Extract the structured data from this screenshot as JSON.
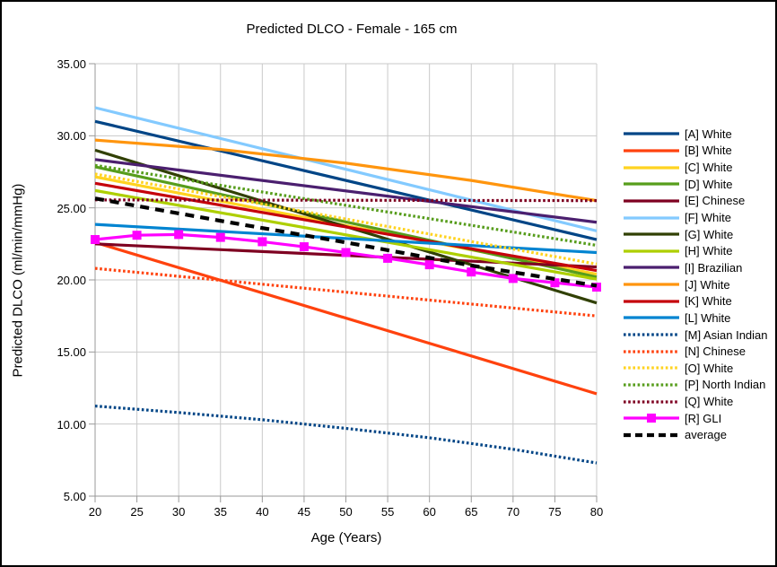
{
  "window": {
    "title": "Predicted DLCO - Female - 165 cm"
  },
  "chart_data": {
    "type": "line",
    "title": "Predicted DLCO - Female - 165 cm",
    "xlabel": "Age (Years)",
    "ylabel": "Predicted DLCO (ml/min/mmHg)",
    "xlim": [
      20,
      80
    ],
    "ylim": [
      5,
      35
    ],
    "x_ticks": [
      20,
      25,
      30,
      35,
      40,
      45,
      50,
      55,
      60,
      65,
      70,
      75,
      80
    ],
    "y_ticks": [
      5,
      10,
      15,
      20,
      25,
      30,
      35
    ],
    "y_tick_labels": [
      "5.00",
      "10.00",
      "15.00",
      "20.00",
      "25.00",
      "30.00",
      "35.00"
    ],
    "grid": true,
    "legend_position": "right",
    "colors": {
      "gridline": "#c9c9c9",
      "axis": "#999999",
      "gli_magenta": "#ff00ff",
      "average_black": "#000000"
    },
    "series": [
      {
        "id": "A",
        "label": "[A] White",
        "color": "#004586",
        "style": "solid",
        "x": [
          20,
          80
        ],
        "y": [
          31.0,
          22.8
        ]
      },
      {
        "id": "B",
        "label": "[B] White",
        "color": "#ff420e",
        "style": "solid",
        "x": [
          20,
          80
        ],
        "y": [
          22.6,
          12.1
        ]
      },
      {
        "id": "C",
        "label": "[C] White",
        "color": "#ffd320",
        "style": "solid",
        "x": [
          20,
          80
        ],
        "y": [
          27.15,
          20.4
        ]
      },
      {
        "id": "D",
        "label": "[D] White",
        "color": "#579d1c",
        "style": "solid",
        "x": [
          20,
          80
        ],
        "y": [
          27.85,
          20.2
        ]
      },
      {
        "id": "E",
        "label": "[E] Chinese",
        "color": "#7e0021",
        "style": "solid",
        "x": [
          20,
          80
        ],
        "y": [
          22.5,
          20.9
        ]
      },
      {
        "id": "F",
        "label": "[F] White",
        "color": "#83caff",
        "style": "solid",
        "x": [
          20,
          80
        ],
        "y": [
          31.95,
          23.4
        ]
      },
      {
        "id": "G",
        "label": "[G] White",
        "color": "#314004",
        "style": "solid",
        "x": [
          20,
          80
        ],
        "y": [
          29.0,
          18.4
        ]
      },
      {
        "id": "H",
        "label": "[H] White",
        "color": "#aecf00",
        "style": "solid",
        "x": [
          20,
          80
        ],
        "y": [
          26.2,
          20.05
        ]
      },
      {
        "id": "I",
        "label": "[I] Brazilian",
        "color": "#4b1f6f",
        "style": "solid",
        "x": [
          20,
          80
        ],
        "y": [
          28.35,
          24.0
        ]
      },
      {
        "id": "J",
        "label": "[J] White",
        "color": "#ff950e",
        "style": "solid",
        "x": [
          20,
          35,
          50,
          65,
          80
        ],
        "y": [
          29.7,
          29.05,
          28.1,
          26.9,
          25.5
        ]
      },
      {
        "id": "K",
        "label": "[K] White",
        "color": "#c5000b",
        "style": "solid",
        "x": [
          20,
          80
        ],
        "y": [
          26.7,
          20.65
        ]
      },
      {
        "id": "L",
        "label": "[L] White",
        "color": "#0084d1",
        "style": "solid",
        "x": [
          20,
          80
        ],
        "y": [
          23.85,
          21.9
        ]
      },
      {
        "id": "M",
        "label": "[M] Asian Indian",
        "color": "#004586",
        "style": "dotted",
        "x": [
          20,
          30,
          40,
          50,
          60,
          70,
          80
        ],
        "y": [
          11.25,
          10.8,
          10.3,
          9.7,
          9.05,
          8.25,
          7.3
        ]
      },
      {
        "id": "N",
        "label": "[N] Chinese",
        "color": "#ff420e",
        "style": "dotted",
        "x": [
          20,
          80
        ],
        "y": [
          20.8,
          17.5
        ]
      },
      {
        "id": "O",
        "label": "[O] White",
        "color": "#ffd320",
        "style": "dotted",
        "x": [
          20,
          80
        ],
        "y": [
          27.35,
          21.1
        ]
      },
      {
        "id": "P",
        "label": "[P] North Indian",
        "color": "#579d1c",
        "style": "dotted",
        "x": [
          20,
          80
        ],
        "y": [
          27.95,
          22.4
        ]
      },
      {
        "id": "Q",
        "label": "[Q] White",
        "color": "#7e0021",
        "style": "dotted",
        "x": [
          20,
          80
        ],
        "y": [
          25.55,
          25.5
        ]
      },
      {
        "id": "R",
        "label": "[R] GLI",
        "color": "#ff00ff",
        "style": "solid",
        "marker": "square",
        "x": [
          20,
          25,
          30,
          35,
          40,
          45,
          50,
          55,
          60,
          65,
          70,
          75,
          80
        ],
        "y": [
          22.8,
          23.1,
          23.15,
          22.95,
          22.65,
          22.3,
          21.9,
          21.5,
          21.05,
          20.55,
          20.1,
          19.8,
          19.5
        ]
      },
      {
        "id": "avg",
        "label": "average",
        "color": "#000000",
        "style": "dashed",
        "x": [
          20,
          35,
          50,
          65,
          80
        ],
        "y": [
          25.65,
          24.1,
          22.6,
          21.0,
          19.6
        ]
      }
    ]
  }
}
